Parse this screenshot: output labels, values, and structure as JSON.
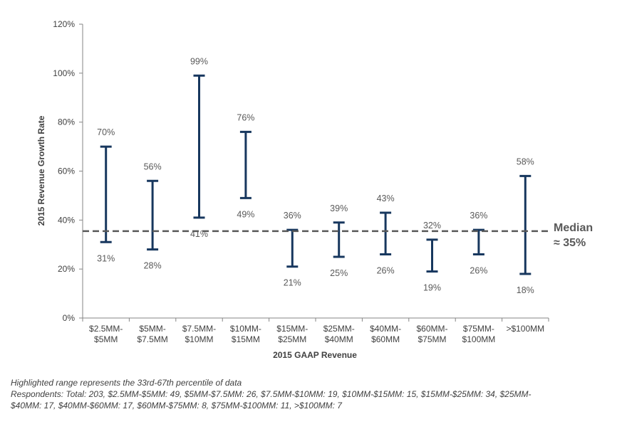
{
  "chart_data": {
    "type": "range",
    "xlabel": "2015 GAAP Revenue",
    "ylabel": "2015 Revenue Growth Rate",
    "ylim": [
      0,
      120
    ],
    "y_ticks": [
      0,
      20,
      40,
      60,
      80,
      100,
      120
    ],
    "y_tick_labels": [
      "0%",
      "20%",
      "40%",
      "60%",
      "80%",
      "100%",
      "120%"
    ],
    "categories": [
      [
        "$2.5MM-",
        "$5MM"
      ],
      [
        "$5MM-",
        "$7.5MM"
      ],
      [
        "$7.5MM-",
        "$10MM"
      ],
      [
        "$10MM-",
        "$15MM"
      ],
      [
        "$15MM-",
        "$25MM"
      ],
      [
        "$25MM-",
        "$40MM"
      ],
      [
        "$40MM-",
        "$60MM"
      ],
      [
        "$60MM-",
        "$75MM"
      ],
      [
        "$75MM-",
        "$100MM"
      ],
      [
        ">$100MM"
      ]
    ],
    "high": [
      70,
      56,
      99,
      76,
      36,
      39,
      43,
      32,
      36,
      58
    ],
    "low": [
      31,
      28,
      41,
      49,
      21,
      25,
      26,
      19,
      26,
      18
    ],
    "high_labels": [
      "70%",
      "56%",
      "99%",
      "76%",
      "36%",
      "39%",
      "43%",
      "32%",
      "36%",
      "58%"
    ],
    "low_labels": [
      "31%",
      "28%",
      "41%",
      "49%",
      "21%",
      "25%",
      "26%",
      "19%",
      "26%",
      "18%"
    ],
    "median": 35.5,
    "median_label": [
      "Median",
      "≈ 35%"
    ],
    "bar_color": "#17375e",
    "median_color": "#595959"
  },
  "footnotes": {
    "line1": "Highlighted range represents the 33rd-67th percentile of data",
    "line2": "Respondents: Total: 203, $2.5MM-$5MM: 49, $5MM-$7.5MM: 26, $7.5MM-$10MM: 19, $10MM-$15MM: 15, $15MM-$25MM: 34, $25MM-",
    "line3": "$40MM: 17, $40MM-$60MM: 17, $60MM-$75MM: 8, $75MM-$100MM: 11, >$100MM: 7"
  }
}
